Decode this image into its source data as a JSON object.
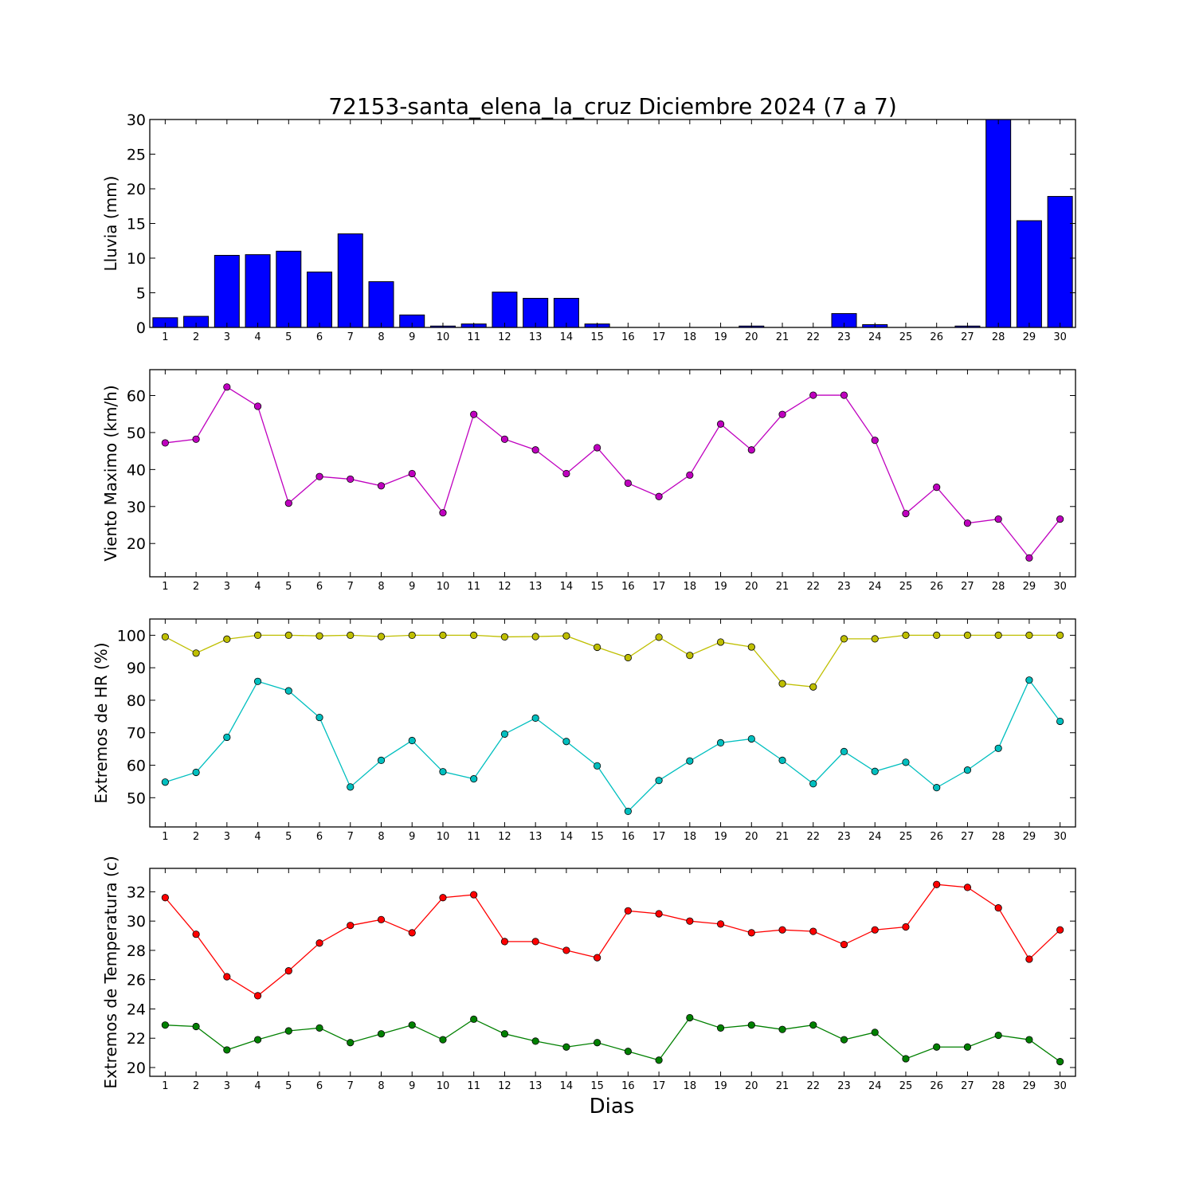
{
  "chart_data": {
    "title": "72153-santa_elena_la_cruz Diciembre 2024  (7 a 7)",
    "xlabel": "Dias",
    "categories": [
      1,
      2,
      3,
      4,
      5,
      6,
      7,
      8,
      9,
      10,
      11,
      12,
      13,
      14,
      15,
      16,
      17,
      18,
      19,
      20,
      21,
      22,
      23,
      24,
      25,
      26,
      27,
      28,
      29,
      30
    ],
    "panels": [
      {
        "type": "bar",
        "ylabel": "Lluvia (mm)",
        "ylim": [
          0,
          30
        ],
        "yticks": [
          0,
          5,
          10,
          15,
          20,
          25,
          30
        ],
        "series": [
          {
            "color": "#0000ff",
            "values": [
              1.4,
              1.6,
              10.4,
              10.5,
              11.0,
              8.0,
              13.5,
              6.6,
              1.8,
              0.2,
              0.5,
              5.1,
              4.2,
              4.2,
              0.5,
              0.0,
              0.0,
              0.0,
              0.0,
              0.2,
              0.0,
              0.0,
              2.0,
              0.4,
              0.0,
              0.0,
              0.2,
              30.0,
              15.4,
              18.9
            ]
          }
        ]
      },
      {
        "type": "line",
        "ylabel": "Viento Maximo (km/h)",
        "ylim": [
          11,
          67
        ],
        "yticks": [
          20,
          30,
          40,
          50,
          60
        ],
        "series": [
          {
            "color": "#bf00bf",
            "values": [
              47.2,
              48.2,
              62.3,
              57.1,
              30.9,
              38.1,
              37.4,
              35.6,
              38.9,
              28.3,
              54.9,
              48.2,
              45.3,
              38.9,
              45.9,
              36.3,
              32.7,
              38.5,
              52.3,
              45.3,
              54.9,
              60.1,
              60.1,
              47.9,
              28.1,
              35.2,
              25.5,
              26.6,
              16.1,
              26.6
            ]
          }
        ]
      },
      {
        "type": "line",
        "ylabel": "Extremos de HR (%)",
        "ylim": [
          41,
          105
        ],
        "yticks": [
          50,
          60,
          70,
          80,
          90,
          100
        ],
        "series": [
          {
            "color": "#bfbf00",
            "values": [
              99.5,
              94.5,
              98.8,
              100,
              100,
              99.8,
              100,
              99.6,
              100,
              100,
              100,
              99.5,
              99.6,
              99.8,
              96.3,
              93.1,
              99.4,
              93.8,
              97.9,
              96.4,
              85.1,
              84.1,
              98.9,
              98.9,
              100,
              100,
              100,
              100,
              100,
              100
            ]
          },
          {
            "color": "#00bfbf",
            "values": [
              54.8,
              57.8,
              68.6,
              85.8,
              82.9,
              74.7,
              53.3,
              61.5,
              67.6,
              58.0,
              55.8,
              69.6,
              74.5,
              67.3,
              59.8,
              45.8,
              55.3,
              61.3,
              66.9,
              68.1,
              61.5,
              54.3,
              64.2,
              58.1,
              60.9,
              53.1,
              58.5,
              65.2,
              86.2,
              73.5
            ]
          }
        ]
      },
      {
        "type": "line",
        "ylabel": "Extremos de Temperatura (c)",
        "ylim": [
          19.4,
          33.6
        ],
        "yticks": [
          20,
          22,
          24,
          26,
          28,
          30,
          32
        ],
        "series": [
          {
            "color": "#ff0000",
            "values": [
              31.6,
              29.1,
              26.2,
              24.9,
              26.6,
              28.5,
              29.7,
              30.1,
              29.2,
              31.6,
              31.8,
              28.6,
              28.6,
              28.0,
              27.5,
              30.7,
              30.5,
              30.0,
              29.8,
              29.2,
              29.4,
              29.3,
              28.4,
              29.4,
              29.6,
              32.5,
              32.3,
              30.9,
              27.4,
              29.4
            ]
          },
          {
            "color": "#008000",
            "values": [
              22.9,
              22.8,
              21.2,
              21.9,
              22.5,
              22.7,
              21.7,
              22.3,
              22.9,
              21.9,
              23.3,
              22.3,
              21.8,
              21.4,
              21.7,
              21.1,
              20.5,
              23.4,
              22.7,
              22.9,
              22.6,
              22.9,
              21.9,
              22.4,
              20.6,
              21.4,
              21.4,
              22.2,
              21.9,
              20.4
            ]
          }
        ]
      }
    ]
  }
}
